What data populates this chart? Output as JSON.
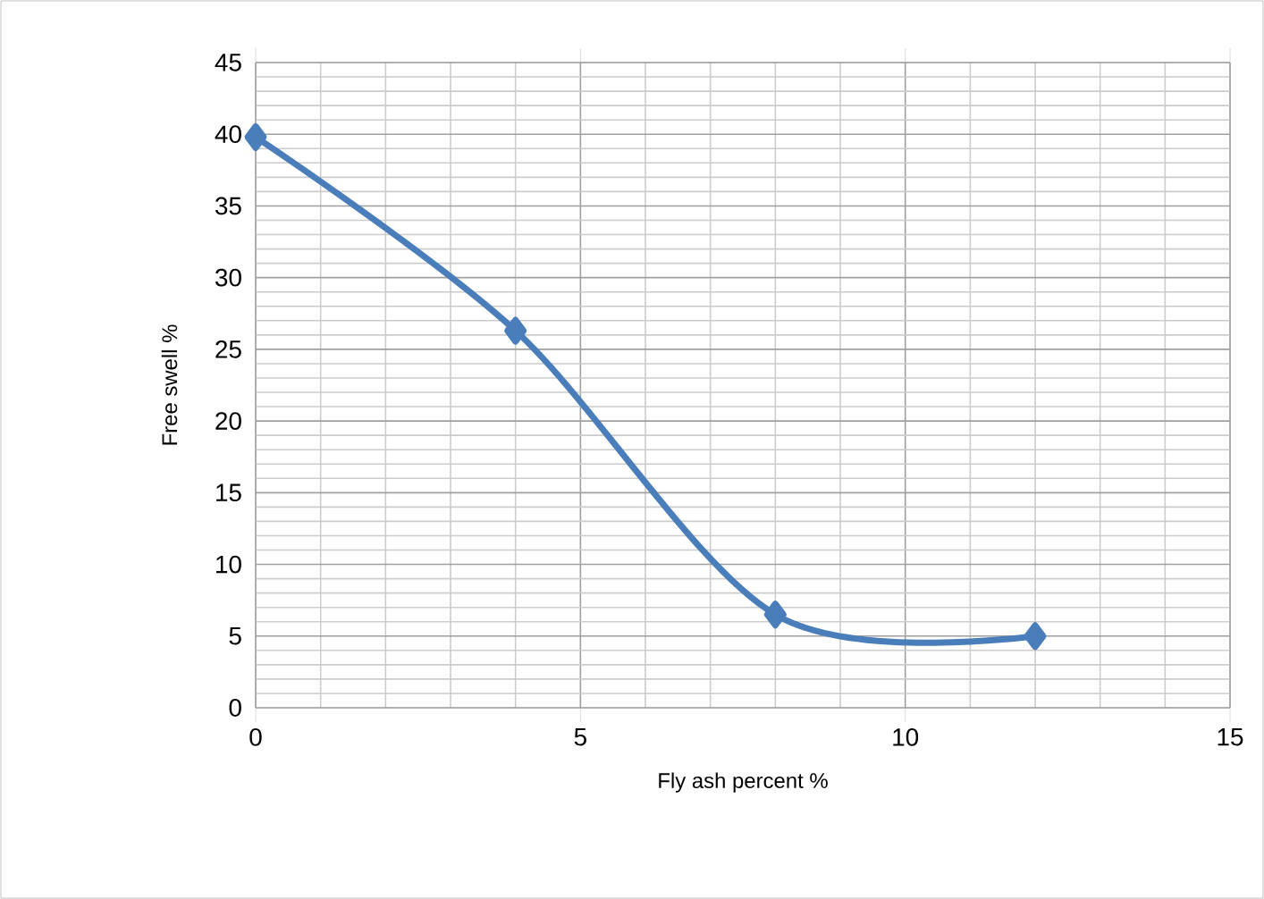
{
  "chart_data": {
    "type": "line",
    "xlabel": "Fly ash percent %",
    "ylabel": "Free swell  %",
    "x": [
      0,
      4,
      8,
      12
    ],
    "series": [
      {
        "color": "#4a7ebb",
        "values": [
          39.8,
          26.3,
          6.5,
          5
        ]
      }
    ],
    "xlim": [
      0,
      15
    ],
    "ylim": [
      0,
      45
    ],
    "xticks": [
      0,
      5,
      10,
      15
    ],
    "yticks": [
      0,
      5,
      10,
      15,
      20,
      25,
      30,
      35,
      40,
      45
    ],
    "grid": true,
    "marker": "diamond",
    "line_style": "solid"
  }
}
